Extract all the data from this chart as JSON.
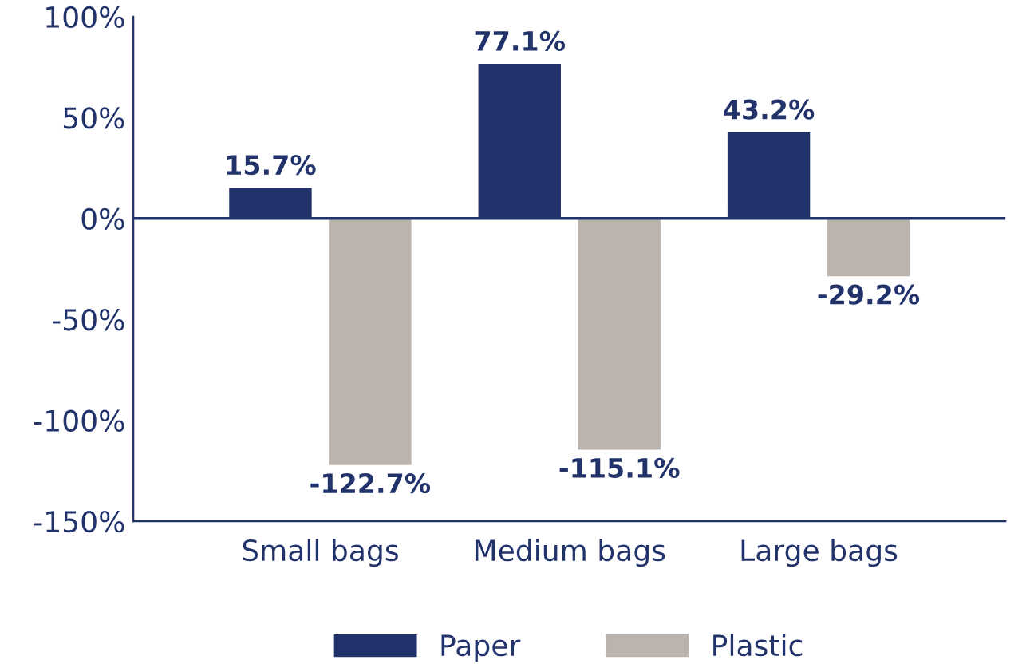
{
  "chart_data": {
    "type": "bar",
    "categories": [
      "Small bags",
      "Medium bags",
      "Large bags"
    ],
    "series": [
      {
        "name": "Paper",
        "color": "#22336b",
        "values": [
          15.7,
          77.1,
          43.2
        ],
        "value_labels": [
          "15.7%",
          "77.1%",
          "43.2%"
        ]
      },
      {
        "name": "Plastic",
        "color": "#bab3ae",
        "values": [
          -122.7,
          -115.1,
          -29.2
        ],
        "value_labels": [
          "-122.7%",
          "-115.1%",
          "-29.2%"
        ]
      }
    ],
    "ylim": [
      -150,
      100
    ],
    "yticks": [
      {
        "value": -150,
        "label": "-150%"
      },
      {
        "value": -100,
        "label": "-100%"
      },
      {
        "value": -50,
        "label": "-50%"
      },
      {
        "value": 0,
        "label": "0%"
      },
      {
        "value": 50,
        "label": "50%"
      },
      {
        "value": 100,
        "label": "100%"
      }
    ],
    "ref_lines": [
      {
        "axis": "y",
        "value": 0,
        "color": "#22336b"
      }
    ],
    "legend": "bottom",
    "grid": false
  }
}
